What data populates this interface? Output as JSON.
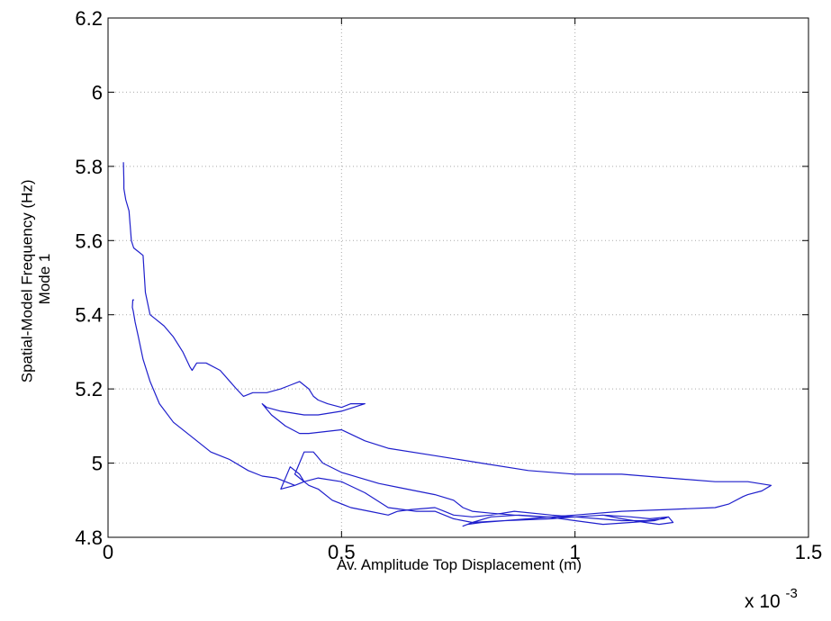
{
  "colors": {
    "series": "#1f1fcc",
    "grid": "#a9a9a9",
    "axes": "#000000",
    "background": "#ffffff"
  },
  "chart_data": {
    "type": "line",
    "title": "",
    "xlabel": "Av. Amplitude Top Displacement (m)",
    "ylabel": [
      "Spatial-Model Frequency (Hz)",
      "Mode 1"
    ],
    "x_exponent_label": "x 10",
    "x_exponent": "-3",
    "xlim": [
      0,
      1.5
    ],
    "ylim": [
      4.8,
      6.2
    ],
    "x_unit_multiplier": 0.001,
    "xticks": [
      0,
      0.5,
      1,
      1.5
    ],
    "xtick_labels": [
      "0",
      "0.5",
      "1",
      "1.5"
    ],
    "yticks": [
      4.8,
      5.0,
      5.2,
      5.4,
      5.6,
      5.8,
      6.0,
      6.2
    ],
    "ytick_labels": [
      "4.8",
      "5",
      "5.2",
      "5.4",
      "5.6",
      "5.8",
      "6",
      "6.2"
    ],
    "grid": true,
    "series": [
      {
        "x": [
          0.033,
          0.034,
          0.034,
          0.038,
          0.045,
          0.05,
          0.055,
          0.065,
          0.075,
          0.08,
          0.085,
          0.09,
          0.1,
          0.12,
          0.14,
          0.16,
          0.175,
          0.18,
          0.19,
          0.21,
          0.24,
          0.275,
          0.29,
          0.31,
          0.34,
          0.37,
          0.39,
          0.41,
          0.43,
          0.44,
          0.45,
          0.47,
          0.5,
          0.52,
          0.55,
          0.5,
          0.45,
          0.42,
          0.37,
          0.34,
          0.33,
          0.35,
          0.38,
          0.41,
          0.43,
          0.5,
          0.55,
          0.6,
          0.7,
          0.8,
          0.9,
          1.0,
          1.1,
          1.2,
          1.3,
          1.37,
          1.42,
          1.4,
          1.37,
          1.36,
          1.33,
          1.3,
          1.2,
          1.1,
          1.0,
          0.95,
          0.9,
          0.85,
          0.8,
          0.77,
          0.76,
          0.78,
          0.85,
          0.95,
          1.0,
          1.05,
          1.1,
          1.15,
          1.19,
          1.2,
          1.21,
          1.18,
          1.15,
          1.1,
          1.06,
          1.0,
          0.95,
          0.87,
          0.82,
          0.78,
          0.74,
          0.72,
          0.7,
          0.65,
          0.62,
          0.6,
          0.56,
          0.52,
          0.48,
          0.45,
          0.43,
          0.41,
          0.4,
          0.42,
          0.44,
          0.46,
          0.5,
          0.54,
          0.58,
          0.62,
          0.66,
          0.7,
          0.74,
          0.76,
          0.78,
          0.82,
          0.87,
          0.93,
          1.0,
          1.06,
          1.12,
          1.16,
          1.2,
          1.17,
          1.12,
          1.06,
          1.0,
          0.94,
          0.88,
          0.82,
          0.78,
          0.74,
          0.7,
          0.66,
          0.6,
          0.55,
          0.5,
          0.45,
          0.42,
          0.4,
          0.37,
          0.39,
          0.41,
          0.42,
          0.4,
          0.38,
          0.36,
          0.33,
          0.3,
          0.26,
          0.22,
          0.18,
          0.14,
          0.11,
          0.09,
          0.075,
          0.065,
          0.058,
          0.054,
          0.052,
          0.053,
          0.055
        ],
        "y": [
          5.81,
          5.76,
          5.74,
          5.71,
          5.68,
          5.6,
          5.58,
          5.57,
          5.56,
          5.46,
          5.43,
          5.4,
          5.39,
          5.37,
          5.34,
          5.3,
          5.26,
          5.25,
          5.27,
          5.27,
          5.25,
          5.2,
          5.18,
          5.19,
          5.19,
          5.2,
          5.21,
          5.22,
          5.2,
          5.18,
          5.17,
          5.16,
          5.15,
          5.16,
          5.16,
          5.14,
          5.13,
          5.13,
          5.14,
          5.15,
          5.16,
          5.13,
          5.1,
          5.08,
          5.08,
          5.09,
          5.06,
          5.04,
          5.02,
          5.0,
          4.98,
          4.97,
          4.97,
          4.96,
          4.95,
          4.95,
          4.94,
          4.925,
          4.915,
          4.91,
          4.89,
          4.88,
          4.875,
          4.87,
          4.86,
          4.855,
          4.85,
          4.845,
          4.84,
          4.835,
          4.83,
          4.84,
          4.845,
          4.85,
          4.855,
          4.85,
          4.845,
          4.845,
          4.85,
          4.855,
          4.84,
          4.835,
          4.84,
          4.85,
          4.86,
          4.855,
          4.86,
          4.87,
          4.86,
          4.855,
          4.86,
          4.87,
          4.88,
          4.875,
          4.87,
          4.86,
          4.87,
          4.88,
          4.9,
          4.93,
          4.94,
          4.96,
          4.97,
          5.03,
          5.03,
          5.0,
          4.975,
          4.96,
          4.945,
          4.935,
          4.925,
          4.915,
          4.9,
          4.88,
          4.87,
          4.865,
          4.86,
          4.855,
          4.855,
          4.86,
          4.855,
          4.85,
          4.855,
          4.845,
          4.84,
          4.835,
          4.845,
          4.855,
          4.86,
          4.855,
          4.84,
          4.85,
          4.87,
          4.87,
          4.88,
          4.92,
          4.95,
          4.96,
          4.95,
          4.94,
          4.93,
          4.99,
          4.97,
          4.95,
          4.94,
          4.95,
          4.96,
          4.965,
          4.98,
          5.01,
          5.03,
          5.07,
          5.11,
          5.16,
          5.22,
          5.28,
          5.34,
          5.38,
          5.41,
          5.42,
          5.44,
          5.44
        ]
      }
    ]
  }
}
